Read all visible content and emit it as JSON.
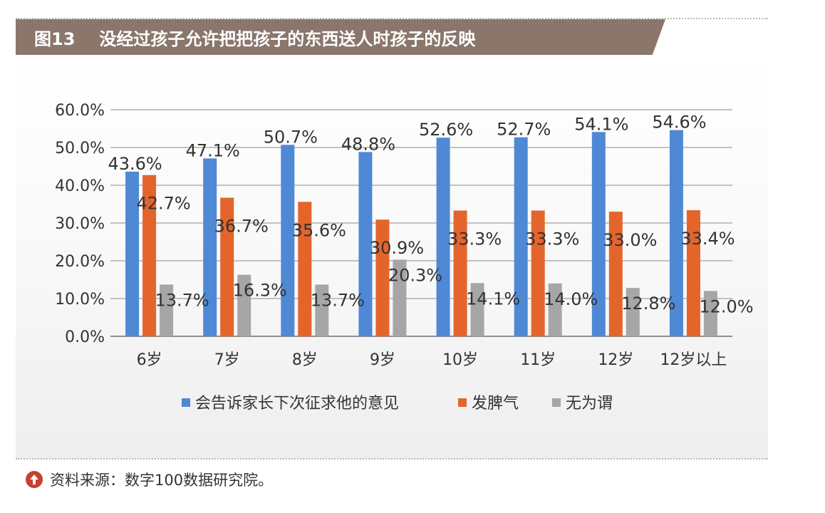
{
  "header": {
    "figure_number": "图13",
    "title": "没经过孩子允许把把孩子的东西送人时孩子的反映"
  },
  "source": {
    "text": "资料来源：数字100数据研究院。",
    "icon": "arrow-up-circle-icon"
  },
  "colors": {
    "header_bg": "#8a766b",
    "series": [
      "#4f89d6",
      "#e4652c",
      "#a6a6a6"
    ]
  },
  "chart_data": {
    "type": "bar",
    "title": "没经过孩子允许把把孩子的东西送人时孩子的反映",
    "xlabel": "",
    "ylabel": "",
    "categories": [
      "6岁",
      "7岁",
      "8岁",
      "9岁",
      "10岁",
      "11岁",
      "12岁",
      "12岁以上"
    ],
    "series": [
      {
        "name": "会告诉家长下次征求他的意见",
        "values": [
          43.6,
          47.1,
          50.7,
          48.8,
          52.6,
          52.7,
          54.1,
          54.6
        ],
        "labels": [
          "43.6%",
          "47.1%",
          "50.7%",
          "48.8%",
          "52.6%",
          "52.7%",
          "54.1%",
          "54.6%"
        ]
      },
      {
        "name": "发脾气",
        "values": [
          42.7,
          36.7,
          35.6,
          30.9,
          33.3,
          33.3,
          33.0,
          33.4
        ],
        "labels": [
          "42.7%",
          "36.7%",
          "35.6%",
          "30.9%",
          "33.3%",
          "33.3%",
          "33.0%",
          "33.4%"
        ]
      },
      {
        "name": "无为谓",
        "values": [
          13.7,
          16.3,
          13.7,
          20.3,
          14.1,
          14.0,
          12.8,
          12.0
        ],
        "labels": [
          "13.7%",
          "16.3%",
          "13.7%",
          "20.3%",
          "14.1%",
          "14.0%",
          "12.8%",
          "12.0%"
        ]
      }
    ],
    "ylim": [
      0,
      60
    ],
    "yticks": [
      "0.0%",
      "10.0%",
      "20.0%",
      "30.0%",
      "40.0%",
      "50.0%",
      "60.0%"
    ],
    "grid": true,
    "legend": "bottom"
  }
}
